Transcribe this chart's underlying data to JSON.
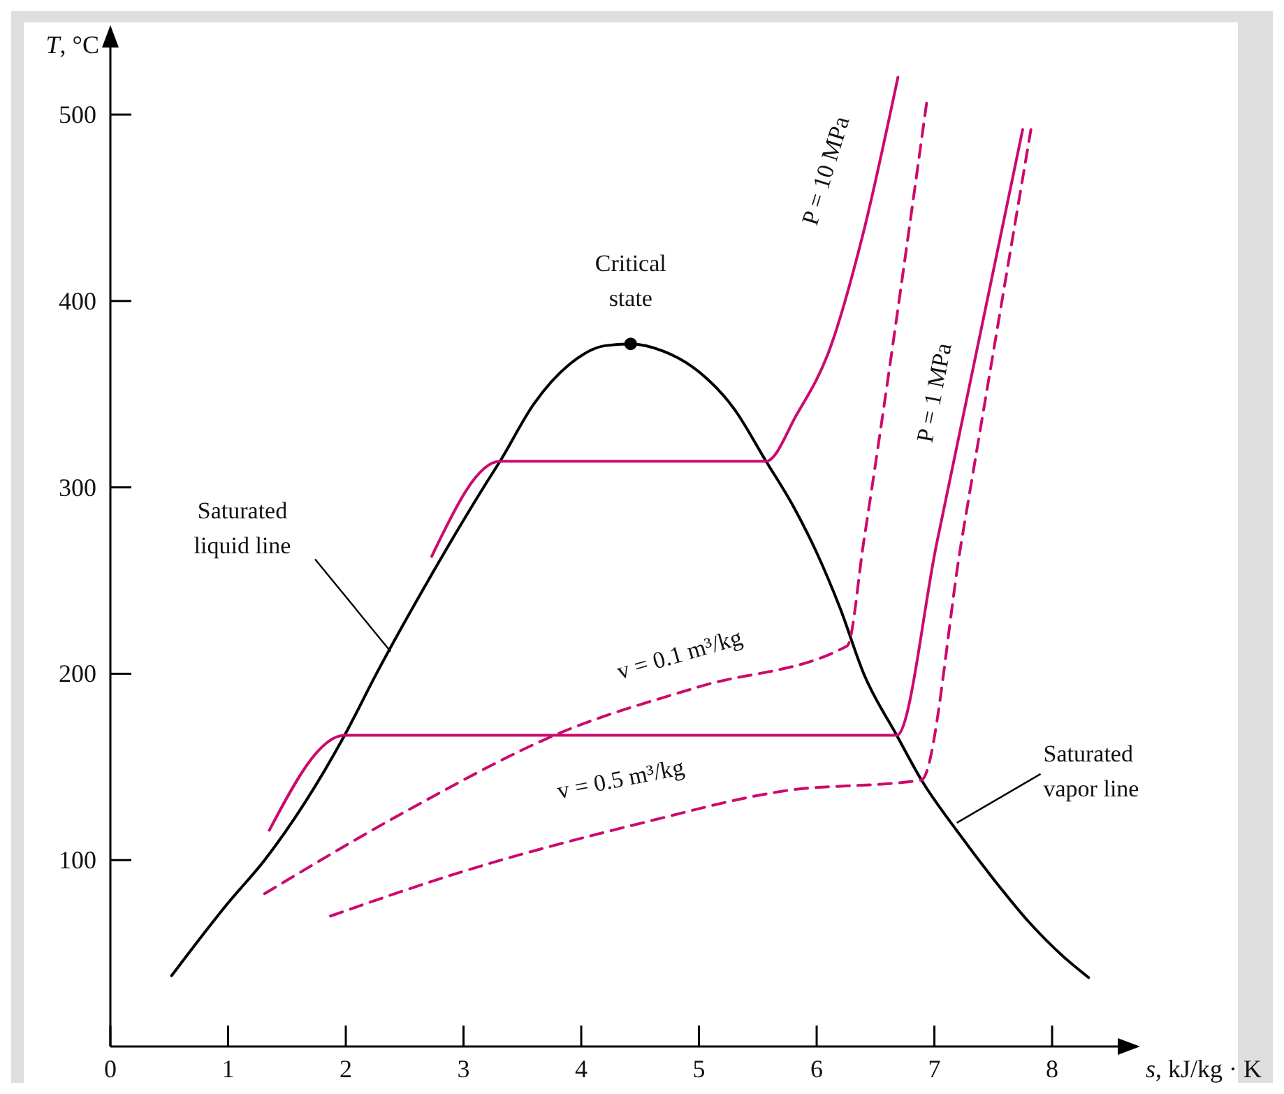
{
  "chart_data": {
    "type": "line",
    "xlabel": "s, kJ/kg · K",
    "ylabel": "T, °C",
    "xlim": [
      0,
      8.7
    ],
    "ylim": [
      0,
      545
    ],
    "xticks": [
      0,
      1,
      2,
      3,
      4,
      5,
      6,
      7,
      8
    ],
    "yticks": [
      100,
      200,
      300,
      400,
      500
    ],
    "marker": "none",
    "line_style": "solid",
    "series": [
      {
        "color": "#000000",
        "x": [
          0.52,
          1.0,
          1.31,
          1.99,
          2.26,
          2.7,
          3.18,
          3.31,
          3.6,
          3.9,
          4.2,
          4.42,
          4.7,
          5.0,
          5.3,
          5.57,
          5.8,
          6.0,
          6.2,
          6.4,
          6.68,
          6.89,
          7.2,
          7.5,
          7.8,
          8.1,
          8.31
        ],
        "values": [
          38,
          77,
          100,
          167,
          200,
          250,
          301,
          314,
          345,
          366,
          376,
          377,
          373,
          362,
          342,
          314,
          290,
          265,
          235,
          200,
          167,
          143,
          115,
          90,
          67,
          48,
          37
        ]
      },
      {
        "color": "#cc0a6e",
        "x": [
          2.73,
          3.31,
          5.57,
          5.83,
          6.11,
          6.39,
          6.69
        ],
        "values": [
          263,
          314,
          314,
          339,
          374,
          435,
          520
        ]
      },
      {
        "color": "#cc0a6e",
        "x": [
          1.35,
          1.99,
          6.68,
          7.02,
          7.75
        ],
        "values": [
          116,
          167,
          167,
          270,
          492
        ]
      },
      {
        "color": "#cc0a6e",
        "line_style": "dashed",
        "x": [
          1.31,
          2.62,
          3.81,
          5.0,
          6.26,
          6.4,
          6.94
        ],
        "values": [
          82,
          130,
          168,
          193,
          215,
          271,
          509
        ]
      },
      {
        "color": "#cc0a6e",
        "line_style": "dashed",
        "x": [
          1.87,
          3.0,
          4.52,
          5.71,
          6.89,
          7.23,
          7.82
        ],
        "values": [
          70,
          94,
          120,
          137,
          143,
          271,
          492
        ]
      },
      {
        "type": "scatter",
        "marker": "circle",
        "color": "#000000",
        "x": [
          4.42
        ],
        "values": [
          377
        ]
      }
    ],
    "annotations": [
      {
        "text": "Critical state",
        "x": 4.42,
        "y": 377
      },
      {
        "text": "Saturated liquid line",
        "x": 2.38,
        "y": 212
      },
      {
        "text": "Saturated vapor line",
        "x": 7.19,
        "y": 120
      },
      {
        "text": "P = 10 MPa",
        "x": 6.4,
        "y": 435
      },
      {
        "text": "P = 1 MPa",
        "x": 7.3,
        "y": 350
      },
      {
        "text": "v = 0.1 m³/kg",
        "x": 4.9,
        "y": 190
      },
      {
        "text": "v = 0.5 m³/kg",
        "x": 4.3,
        "y": 117
      }
    ]
  }
}
